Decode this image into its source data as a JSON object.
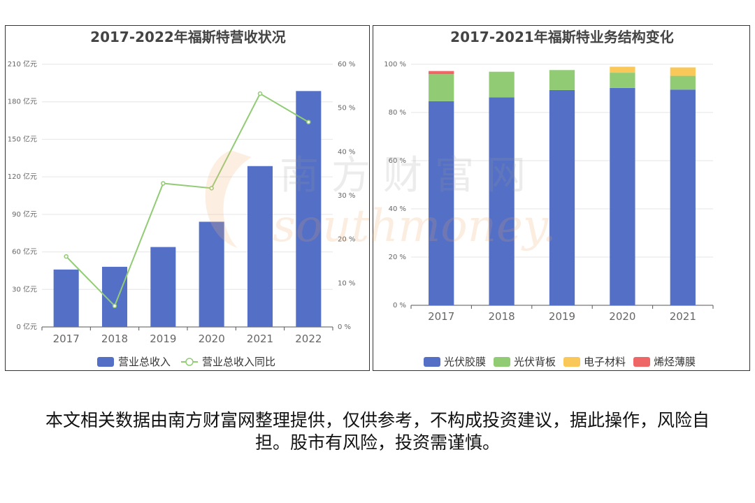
{
  "colors": {
    "blue": "#5470c6",
    "green": "#91cc75",
    "yellow": "#fac858",
    "red": "#ee6666",
    "line": "#91cc75"
  },
  "chart_data": [
    {
      "type": "bar",
      "title": "2017-2022年福斯特营收状况",
      "categories": [
        "2017",
        "2018",
        "2019",
        "2020",
        "2021",
        "2022"
      ],
      "series": [
        {
          "name": "营业总收入",
          "type": "bar",
          "axis": "left",
          "values": [
            45.9,
            48.1,
            63.9,
            84.1,
            128.6,
            188.6
          ]
        },
        {
          "name": "营业总收入同比",
          "type": "line",
          "axis": "right",
          "values": [
            16.1,
            4.8,
            32.8,
            31.7,
            53.3,
            46.8
          ]
        }
      ],
      "y_left": {
        "ylim": [
          0,
          210
        ],
        "ticks": [
          "0 亿元",
          "30 亿元",
          "60 亿元",
          "90 亿元",
          "120 亿元",
          "150 亿元",
          "180 亿元",
          "210 亿元"
        ]
      },
      "y_right": {
        "ylim": [
          0,
          60
        ],
        "ticks": [
          "0 %",
          "10 %",
          "20 %",
          "30 %",
          "40 %",
          "50 %",
          "60 %"
        ]
      },
      "grid": true,
      "legend": "bottom"
    },
    {
      "type": "bar",
      "stacked": true,
      "title": "2017-2021年福斯特业务结构变化",
      "categories": [
        "2017",
        "2018",
        "2019",
        "2020",
        "2021"
      ],
      "series": [
        {
          "name": "光伏胶膜",
          "values": [
            84.7,
            86.3,
            89.3,
            90.2,
            89.5
          ]
        },
        {
          "name": "光伏背板",
          "values": [
            11.2,
            10.6,
            8.3,
            6.3,
            5.7
          ]
        },
        {
          "name": "电子材料",
          "values": [
            0,
            0,
            0,
            2.5,
            3.5
          ]
        },
        {
          "name": "烯烃薄膜",
          "values": [
            1.3,
            0,
            0,
            0,
            0
          ]
        }
      ],
      "y": {
        "ylim": [
          0,
          100
        ],
        "ticks": [
          "0 %",
          "20 %",
          "40 %",
          "60 %",
          "80 %",
          "100 %"
        ]
      },
      "grid": true,
      "legend": "bottom"
    }
  ],
  "disclaimer": "本文相关数据由南方财富网整理提供，仅供参考，不构成投资建议，据此操作，风险自担。股市有风险，投资需谨慎。",
  "watermark": {
    "cn": "南方财富网",
    "en": "southmoney.com"
  }
}
